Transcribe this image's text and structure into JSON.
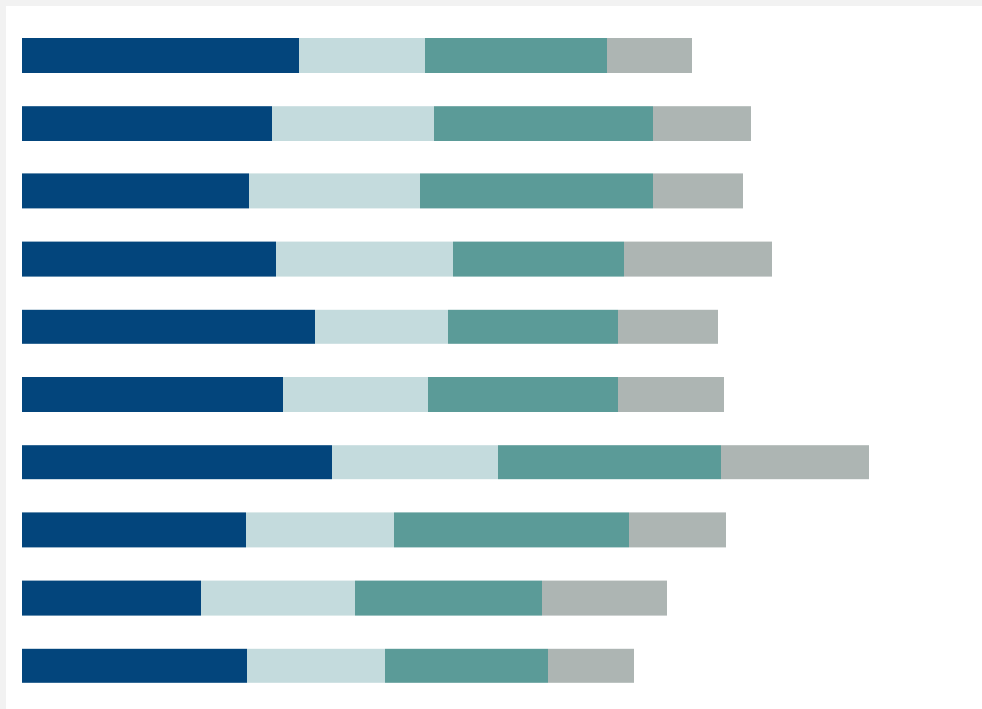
{
  "colors": {
    "background": "#f2f2f2",
    "panel": "#ffffff",
    "series": [
      "#03457c",
      "#c4dbdd",
      "#5b9b98",
      "#adb5b3"
    ]
  },
  "chart_data": {
    "type": "bar",
    "orientation": "horizontal",
    "stacked": true,
    "title": "",
    "xlabel": "",
    "ylabel": "",
    "categories": [
      "",
      "",
      "",
      "",
      "",
      "",
      "",
      "",
      "",
      ""
    ],
    "series": [
      {
        "values": [
          311,
          280,
          255,
          285,
          329,
          293,
          348,
          251,
          201,
          252
        ]
      },
      {
        "values": [
          141,
          183,
          192,
          199,
          149,
          163,
          186,
          166,
          173,
          156
        ]
      },
      {
        "values": [
          205,
          245,
          261,
          192,
          191,
          213,
          251,
          264,
          210,
          183
        ]
      },
      {
        "values": [
          95,
          111,
          102,
          166,
          112,
          119,
          166,
          109,
          140,
          96
        ]
      }
    ],
    "xlim": [
      0,
      1072
    ],
    "grid": false,
    "legend": "none"
  }
}
